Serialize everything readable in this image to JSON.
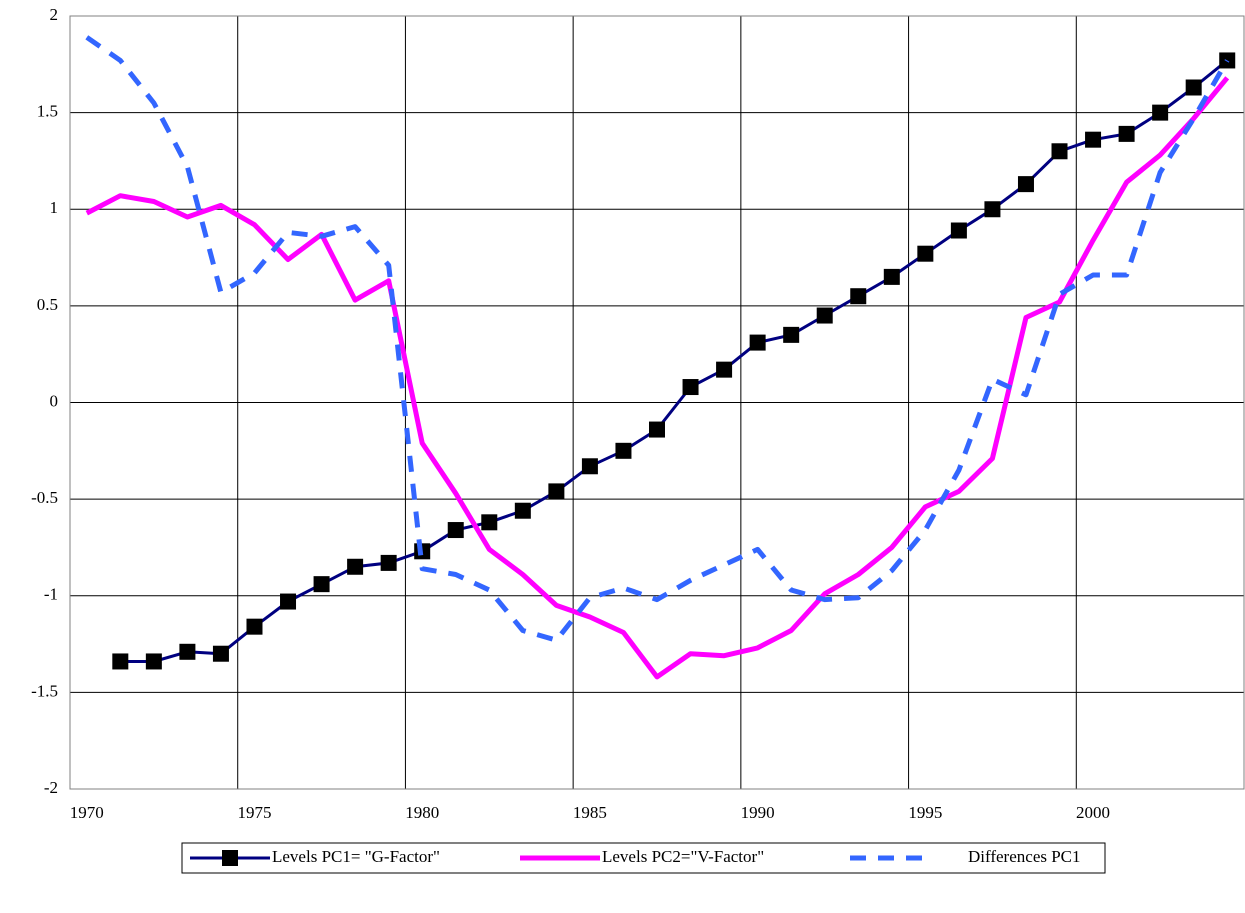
{
  "chart_data": {
    "type": "line",
    "categories": [
      "1970",
      null,
      null,
      null,
      null,
      "1975",
      null,
      null,
      null,
      null,
      "1980",
      null,
      null,
      null,
      null,
      "1985",
      null,
      null,
      null,
      null,
      "1990",
      null,
      null,
      null,
      null,
      "1995",
      null,
      null,
      null,
      null,
      "2000",
      null,
      null,
      null,
      null
    ],
    "series": [
      {
        "name": "Levels PC1= \"G-Factor\"",
        "color": "#000080",
        "marker": "square",
        "values": [
          null,
          -1.34,
          -1.34,
          -1.29,
          -1.3,
          -1.16,
          -1.03,
          -0.94,
          -0.85,
          -0.83,
          -0.77,
          -0.66,
          -0.62,
          -0.56,
          -0.46,
          -0.33,
          -0.25,
          -0.14,
          0.08,
          0.17,
          0.31,
          0.35,
          0.45,
          0.55,
          0.65,
          0.77,
          0.89,
          1.0,
          1.13,
          1.3,
          1.36,
          1.39,
          1.5,
          1.63,
          1.77
        ]
      },
      {
        "name": "Levels PC2=\"V-Factor\"",
        "color": "#ff00ff",
        "values": [
          0.98,
          1.07,
          1.04,
          0.96,
          1.02,
          0.92,
          0.74,
          0.87,
          0.53,
          0.63,
          -0.21,
          -0.47,
          -0.76,
          -0.89,
          -1.05,
          -1.11,
          -1.19,
          -1.42,
          -1.3,
          -1.31,
          -1.27,
          -1.18,
          -0.99,
          -0.89,
          -0.75,
          -0.54,
          -0.46,
          -0.29,
          0.44,
          0.52,
          0.84,
          1.14,
          1.28,
          1.47,
          1.68
        ]
      },
      {
        "name": "Differences PC1",
        "color": "#3366ff",
        "dashed": true,
        "values": [
          1.89,
          1.77,
          1.55,
          1.22,
          0.57,
          0.67,
          0.88,
          0.86,
          0.91,
          0.71,
          -0.86,
          -0.89,
          -0.97,
          -1.18,
          -1.23,
          -1.01,
          -0.96,
          -1.02,
          -0.92,
          -0.84,
          -0.76,
          -0.97,
          -1.02,
          -1.01,
          -0.87,
          -0.66,
          -0.35,
          0.12,
          0.04,
          0.56,
          0.66,
          0.66,
          1.19,
          1.47,
          1.77
        ]
      }
    ],
    "ylim": [
      -2,
      2
    ],
    "yticks": [
      -2,
      -1.5,
      -1,
      -0.5,
      0,
      0.5,
      1,
      1.5,
      2
    ],
    "grid": true,
    "legend": "bottom"
  }
}
